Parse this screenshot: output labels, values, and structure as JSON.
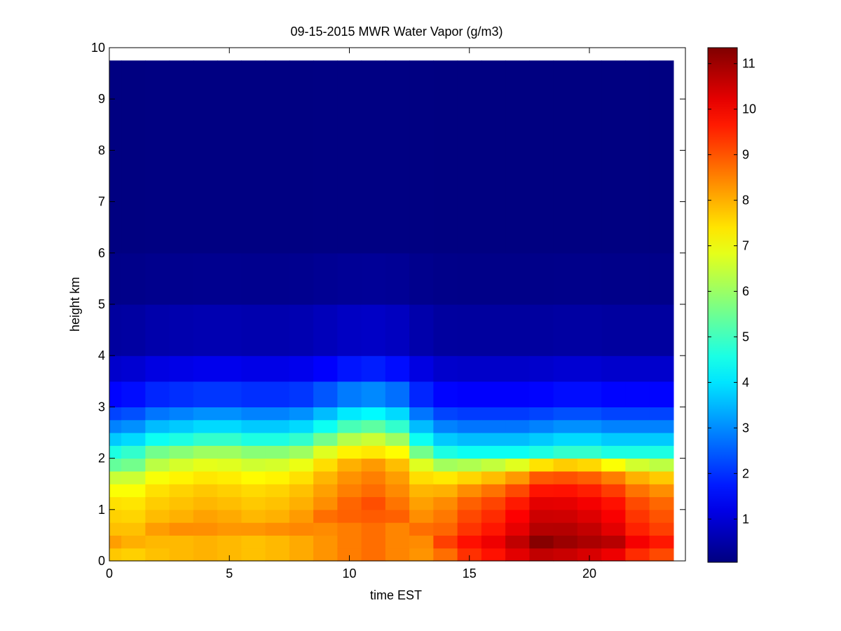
{
  "chart_data": {
    "type": "heatmap",
    "title": "09-15-2015 MWR Water Vapor (g/m3)",
    "xlabel": "time EST",
    "ylabel": "height km",
    "xlim": [
      0,
      24
    ],
    "ylim": [
      0,
      10
    ],
    "x_ticks": [
      "0",
      "5",
      "10",
      "15",
      "20"
    ],
    "y_ticks": [
      "0",
      "1",
      "2",
      "3",
      "4",
      "5",
      "6",
      "7",
      "8",
      "9",
      "10"
    ],
    "colorbar": {
      "range": [
        0.05,
        11.35
      ],
      "ticks": [
        "1",
        "2",
        "3",
        "4",
        "5",
        "6",
        "7",
        "8",
        "9",
        "10",
        "11"
      ],
      "colormap": "jet"
    },
    "x_start": 0,
    "x_step": 1,
    "data_top": 9.75,
    "height_breaks": [
      0.25,
      0.5,
      0.75,
      1.0,
      1.25,
      1.5,
      1.75,
      2.0,
      2.25,
      2.5,
      2.75,
      3.0,
      3.5,
      4.0,
      5.0,
      6.0
    ],
    "height_profile": [
      8.3,
      8.8,
      8.4,
      8.2,
      8.0,
      7.6,
      7.0,
      5.8,
      4.6,
      3.7,
      2.9,
      2.2,
      1.5,
      0.9,
      0.4,
      0.15,
      0.07
    ],
    "hours": [
      0,
      1,
      2,
      3,
      4,
      5,
      6,
      7,
      8,
      9,
      10,
      11,
      12,
      13,
      14,
      15,
      16,
      17,
      18,
      19,
      20,
      21,
      22,
      23
    ],
    "hour_scale": [
      0.93,
      0.92,
      0.94,
      0.95,
      0.96,
      0.95,
      0.94,
      0.95,
      0.97,
      1.0,
      1.03,
      1.05,
      1.02,
      1.0,
      1.05,
      1.12,
      1.16,
      1.22,
      1.28,
      1.27,
      1.25,
      1.22,
      1.14,
      1.1
    ],
    "hour_lift": [
      0.0,
      0.05,
      0.2,
      0.25,
      0.3,
      0.3,
      0.25,
      0.25,
      0.3,
      0.45,
      0.6,
      0.65,
      0.55,
      0.2,
      0.0,
      -0.05,
      -0.05,
      -0.05,
      0.0,
      0.05,
      0.05,
      0.0,
      0.0,
      0.0
    ]
  }
}
